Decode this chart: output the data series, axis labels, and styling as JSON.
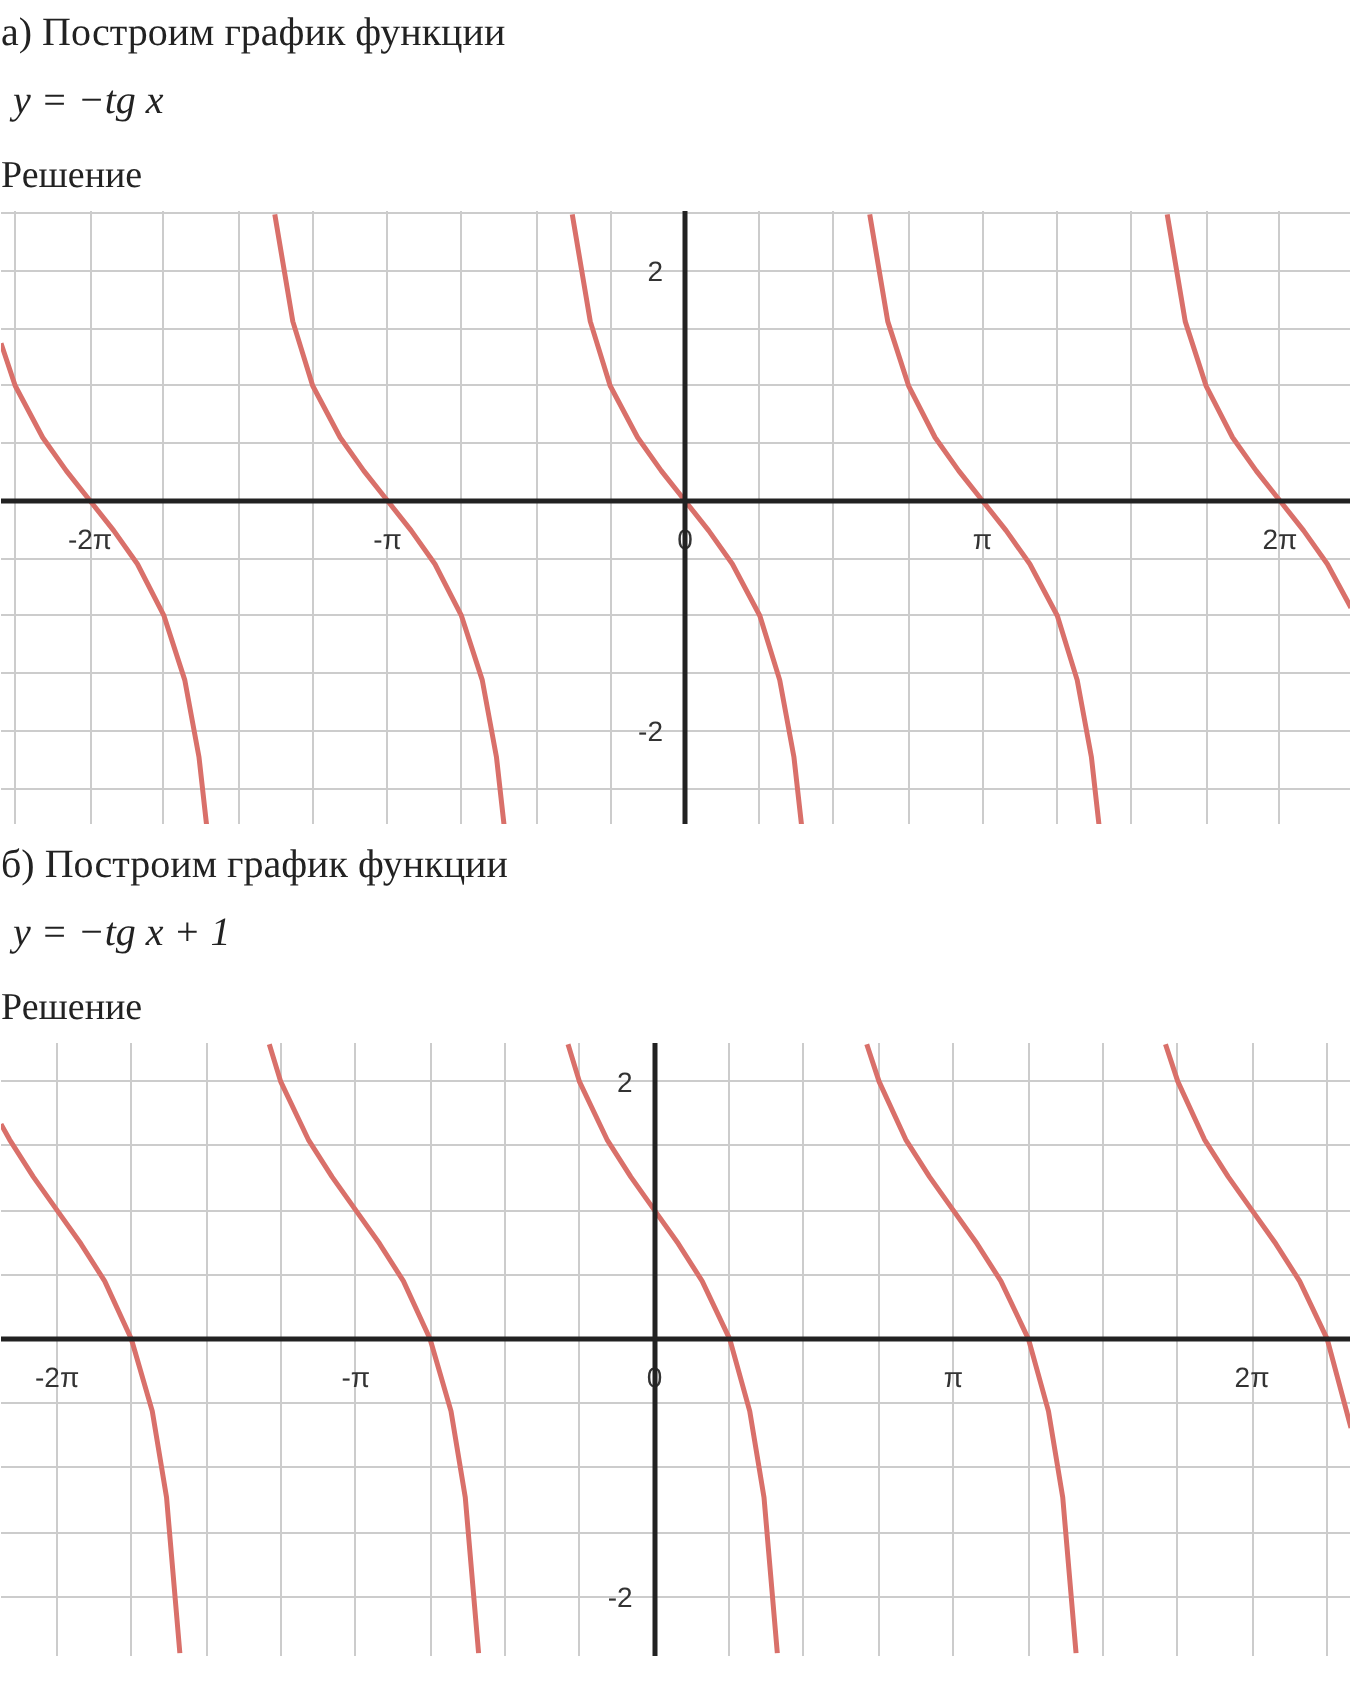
{
  "chart_data": [
    {
      "type": "line",
      "title": "а) Построим график функции",
      "subtitle": "y = −tg x",
      "annotations": [
        "Решение"
      ],
      "xlim": [
        -7.22,
        7.03
      ],
      "ylim": [
        -2.82,
        2.52
      ],
      "grid": true,
      "xticks": [
        {
          "value": -7.07,
          "label": null
        },
        {
          "value": -6.28,
          "label": "-2π"
        },
        {
          "value": -5.5,
          "label": null
        },
        {
          "value": -4.71,
          "label": null
        },
        {
          "value": -3.93,
          "label": null
        },
        {
          "value": -3.14,
          "label": "-π"
        },
        {
          "value": -2.36,
          "label": null
        },
        {
          "value": -1.57,
          "label": null
        },
        {
          "value": -0.79,
          "label": null
        },
        0,
        {
          "value": 0.79,
          "label": null
        },
        {
          "value": 1.57,
          "label": null
        },
        {
          "value": 2.36,
          "label": null
        },
        {
          "value": 3.14,
          "label": "π"
        },
        {
          "value": 3.93,
          "label": null
        },
        {
          "value": 4.71,
          "label": null
        },
        {
          "value": 5.5,
          "label": null
        },
        {
          "value": 6.28,
          "label": "2π"
        }
      ],
      "yticks": [
        {
          "value": -2.5,
          "label": null
        },
        -2,
        {
          "value": -1.5,
          "label": null
        },
        {
          "value": -1,
          "label": null
        },
        {
          "value": -0.5,
          "label": null
        },
        {
          "value": 0,
          "label": null
        },
        {
          "value": 0.5,
          "label": null
        },
        {
          "value": 1,
          "label": null
        },
        {
          "value": 1.5,
          "label": null
        },
        2,
        {
          "value": 2.5,
          "label": null
        }
      ],
      "series": [
        {
          "color": "#d9706a",
          "x": [
            -7.22,
            -7.07,
            -6.78,
            -6.53,
            -6.28,
            -6.03,
            -5.78,
            -5.5,
            -5.28,
            -5.13,
            -5.05
          ],
          "values": [
            1.37,
            1.0,
            0.55,
            0.26,
            0,
            -0.26,
            -0.55,
            -1,
            -1.56,
            -2.23,
            -2.82
          ]
        },
        {
          "color": "#d9706a",
          "x": [
            -4.33,
            -4.14,
            -3.93,
            -3.64,
            -3.39,
            -3.14,
            -2.89,
            -2.64,
            -2.36,
            -2.14,
            -1.99,
            -1.91
          ],
          "values": [
            2.49,
            1.56,
            1,
            0.55,
            0.26,
            0,
            -0.26,
            -0.55,
            -1,
            -1.56,
            -2.23,
            -2.82
          ]
        },
        {
          "color": "#d9706a",
          "x": [
            -1.19,
            -1.0,
            -0.79,
            -0.5,
            -0.25,
            0,
            0.25,
            0.5,
            0.79,
            1.0,
            1.15,
            1.23
          ],
          "values": [
            2.49,
            1.56,
            1,
            0.55,
            0.26,
            0,
            -0.26,
            -0.55,
            -1,
            -1.56,
            -2.23,
            -2.82
          ]
        },
        {
          "color": "#d9706a",
          "x": [
            1.95,
            2.14,
            2.36,
            2.64,
            2.89,
            3.14,
            3.39,
            3.64,
            3.93,
            4.14,
            4.29,
            4.37
          ],
          "values": [
            2.49,
            1.56,
            1,
            0.55,
            0.26,
            0,
            -0.26,
            -0.55,
            -1,
            -1.56,
            -2.23,
            -2.82
          ]
        },
        {
          "color": "#d9706a",
          "x": [
            5.09,
            5.28,
            5.5,
            5.78,
            6.03,
            6.28,
            6.53,
            6.78,
            7.03
          ],
          "values": [
            2.49,
            1.56,
            1,
            0.55,
            0.26,
            0,
            -0.26,
            -0.55,
            -0.93
          ]
        }
      ]
    },
    {
      "type": "line",
      "title": "б) Построим график функции",
      "subtitle": "y = −tg x + 1",
      "annotations": [
        "Решение"
      ],
      "xlim": [
        -6.87,
        7.32
      ],
      "ylim": [
        -2.47,
        2.3
      ],
      "grid": true,
      "xticks": [
        {
          "value": -6.28,
          "label": "-2π"
        },
        {
          "value": -5.5,
          "label": null
        },
        {
          "value": -4.71,
          "label": null
        },
        {
          "value": -3.93,
          "label": null
        },
        {
          "value": -3.14,
          "label": "-π"
        },
        {
          "value": -2.36,
          "label": null
        },
        {
          "value": -1.57,
          "label": null
        },
        {
          "value": -0.79,
          "label": null
        },
        0,
        {
          "value": 0.79,
          "label": null
        },
        {
          "value": 1.57,
          "label": null
        },
        {
          "value": 2.36,
          "label": null
        },
        {
          "value": 3.14,
          "label": "π"
        },
        {
          "value": 3.93,
          "label": null
        },
        {
          "value": 4.71,
          "label": null
        },
        {
          "value": 5.5,
          "label": null
        },
        {
          "value": 6.28,
          "label": "2π"
        },
        {
          "value": 7.07,
          "label": null
        }
      ],
      "yticks": [
        -2,
        {
          "value": -1.5,
          "label": null
        },
        {
          "value": -1,
          "label": null
        },
        {
          "value": -0.5,
          "label": null
        },
        {
          "value": 0,
          "label": null
        },
        {
          "value": 0.5,
          "label": null
        },
        {
          "value": 1,
          "label": null
        },
        {
          "value": 1.5,
          "label": null
        },
        2
      ],
      "series": [
        {
          "color": "#d9706a",
          "x": [
            -6.87,
            -6.78,
            -6.53,
            -6.28,
            -6.03,
            -5.78,
            -5.5,
            -5.28,
            -5.13,
            -4.99
          ],
          "values": [
            1.67,
            1.55,
            1.26,
            1,
            0.74,
            0.45,
            0,
            -0.56,
            -1.23,
            -2.44
          ]
        },
        {
          "color": "#d9706a",
          "x": [
            -4.05,
            -3.93,
            -3.64,
            -3.39,
            -3.14,
            -2.89,
            -2.64,
            -2.36,
            -2.14,
            -1.99,
            -1.85
          ],
          "values": [
            2.29,
            2.0,
            1.55,
            1.26,
            1,
            0.74,
            0.45,
            0,
            -0.56,
            -1.23,
            -2.44
          ]
        },
        {
          "color": "#d9706a",
          "x": [
            -0.91,
            -0.79,
            -0.5,
            -0.25,
            0,
            0.25,
            0.5,
            0.79,
            1.0,
            1.15,
            1.29
          ],
          "values": [
            2.29,
            2.0,
            1.55,
            1.26,
            1,
            0.74,
            0.45,
            0,
            -0.56,
            -1.23,
            -2.44
          ]
        },
        {
          "color": "#d9706a",
          "x": [
            2.23,
            2.36,
            2.64,
            2.89,
            3.14,
            3.39,
            3.64,
            3.93,
            4.14,
            4.29,
            4.43
          ],
          "values": [
            2.29,
            2.0,
            1.55,
            1.26,
            1,
            0.74,
            0.45,
            0,
            -0.56,
            -1.23,
            -2.44
          ]
        },
        {
          "color": "#d9706a",
          "x": [
            5.37,
            5.5,
            5.78,
            6.03,
            6.28,
            6.53,
            6.78,
            7.07,
            7.32
          ],
          "values": [
            2.29,
            2.0,
            1.55,
            1.26,
            1,
            0.74,
            0.45,
            0,
            -0.69
          ]
        }
      ]
    }
  ]
}
